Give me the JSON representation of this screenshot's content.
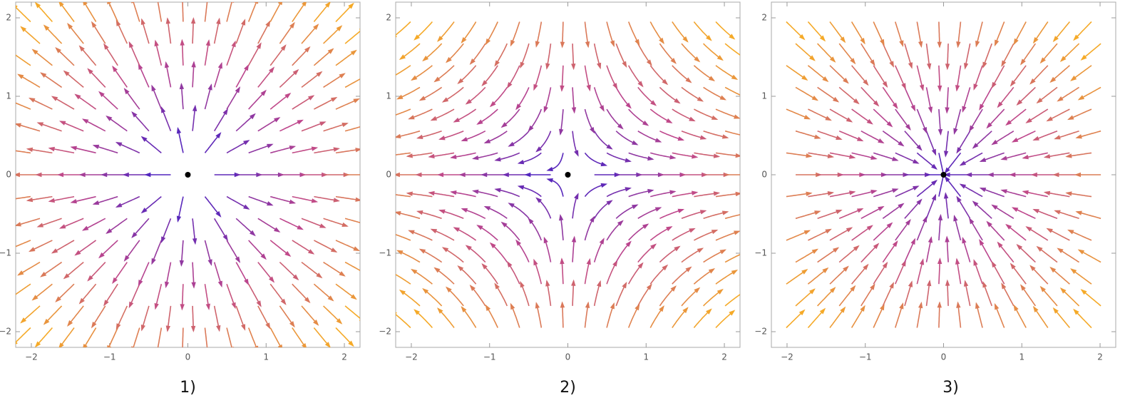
{
  "chart_data": [
    {
      "type": "stream",
      "pattern": "source",
      "label": "1)",
      "point": [
        0,
        0
      ],
      "xlim": [
        -2.2,
        2.2
      ],
      "ylim": [
        -2.2,
        2.2
      ],
      "xticks": [
        {
          "value": -2,
          "label": "−2"
        },
        {
          "value": -1,
          "label": "−1"
        },
        0,
        1,
        2
      ],
      "yticks": [
        {
          "value": -2,
          "label": "−2"
        },
        {
          "value": -1,
          "label": "−1"
        },
        0,
        1,
        2
      ]
    },
    {
      "type": "stream",
      "pattern": "saddle",
      "label": "2)",
      "point": [
        0,
        0
      ],
      "xlim": [
        -2.2,
        2.2
      ],
      "ylim": [
        -2.2,
        2.2
      ],
      "xticks": [
        {
          "value": -2,
          "label": "−2"
        },
        {
          "value": -1,
          "label": "−1"
        },
        0,
        1,
        2
      ],
      "yticks": [
        {
          "value": -2,
          "label": "−2"
        },
        {
          "value": -1,
          "label": "−1"
        },
        0,
        1,
        2
      ]
    },
    {
      "type": "stream",
      "pattern": "sink",
      "label": "3)",
      "point": [
        0,
        0
      ],
      "xlim": [
        -2.2,
        2.2
      ],
      "ylim": [
        -2.2,
        2.2
      ],
      "xticks": [
        {
          "value": -2,
          "label": "−2"
        },
        {
          "value": -1,
          "label": "−1"
        },
        0,
        1,
        2
      ],
      "yticks": [
        {
          "value": -2,
          "label": "−2"
        },
        {
          "value": -1,
          "label": "−1"
        },
        0,
        1,
        2
      ]
    }
  ]
}
